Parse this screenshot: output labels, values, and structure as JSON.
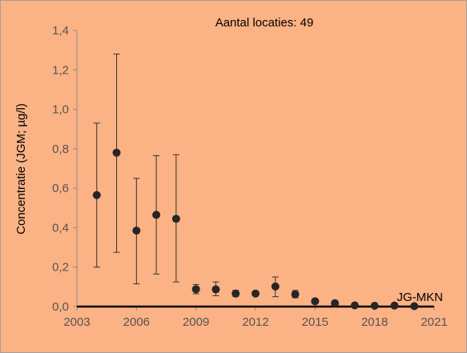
{
  "chart_data": {
    "type": "scatter",
    "title": "",
    "xlabel": "",
    "ylabel": "Concentratie (JGM; µg/l)",
    "xlim": [
      2003,
      2021
    ],
    "ylim": [
      0,
      1.4
    ],
    "x_ticks": [
      2003,
      2006,
      2009,
      2012,
      2015,
      2018,
      2021
    ],
    "y_ticks": [
      0,
      0.2,
      0.4,
      0.6,
      0.8,
      1.0,
      1.2,
      1.4
    ],
    "x_tick_labels": [
      "2003",
      "2006",
      "2009",
      "2012",
      "2015",
      "2018",
      "2021"
    ],
    "y_tick_labels": [
      "0,0",
      "0,2",
      "0,4",
      "0,6",
      "0,8",
      "1,0",
      "1,2",
      "1,4"
    ],
    "grid": false,
    "annotations": {
      "top": "Aantal locaties: 49",
      "reference_line": "JG-MKN"
    },
    "reference_line_value": 0,
    "colors": {
      "background": "#fbb284",
      "marker": "#262626",
      "axis": "#000000"
    },
    "series": [
      {
        "points": [
          {
            "x": 2004,
            "y": 0.565,
            "low": 0.2,
            "high": 0.93
          },
          {
            "x": 2005,
            "y": 0.78,
            "low": 0.275,
            "high": 1.28
          },
          {
            "x": 2006,
            "y": 0.385,
            "low": 0.115,
            "high": 0.65
          },
          {
            "x": 2007,
            "y": 0.465,
            "low": 0.165,
            "high": 0.765
          },
          {
            "x": 2008,
            "y": 0.445,
            "low": 0.125,
            "high": 0.77
          },
          {
            "x": 2009,
            "y": 0.088,
            "low": 0.065,
            "high": 0.112
          },
          {
            "x": 2010,
            "y": 0.087,
            "low": 0.055,
            "high": 0.125
          },
          {
            "x": 2011,
            "y": 0.066,
            "low": 0.052,
            "high": 0.082
          },
          {
            "x": 2012,
            "y": 0.066,
            "low": 0.055,
            "high": 0.078
          },
          {
            "x": 2013,
            "y": 0.102,
            "low": 0.05,
            "high": 0.15
          },
          {
            "x": 2014,
            "y": 0.062,
            "low": 0.045,
            "high": 0.082
          },
          {
            "x": 2015,
            "y": 0.027,
            "low": 0.022,
            "high": 0.033
          },
          {
            "x": 2016,
            "y": 0.017,
            "low": 0.014,
            "high": 0.02
          },
          {
            "x": 2017,
            "y": 0.006,
            "low": 0.005,
            "high": 0.007
          },
          {
            "x": 2018,
            "y": 0.004,
            "low": 0.003,
            "high": 0.005
          },
          {
            "x": 2019,
            "y": 0.005,
            "low": 0.004,
            "high": 0.006
          },
          {
            "x": 2020,
            "y": 0.002,
            "low": 0.002,
            "high": 0.002
          }
        ]
      }
    ]
  }
}
